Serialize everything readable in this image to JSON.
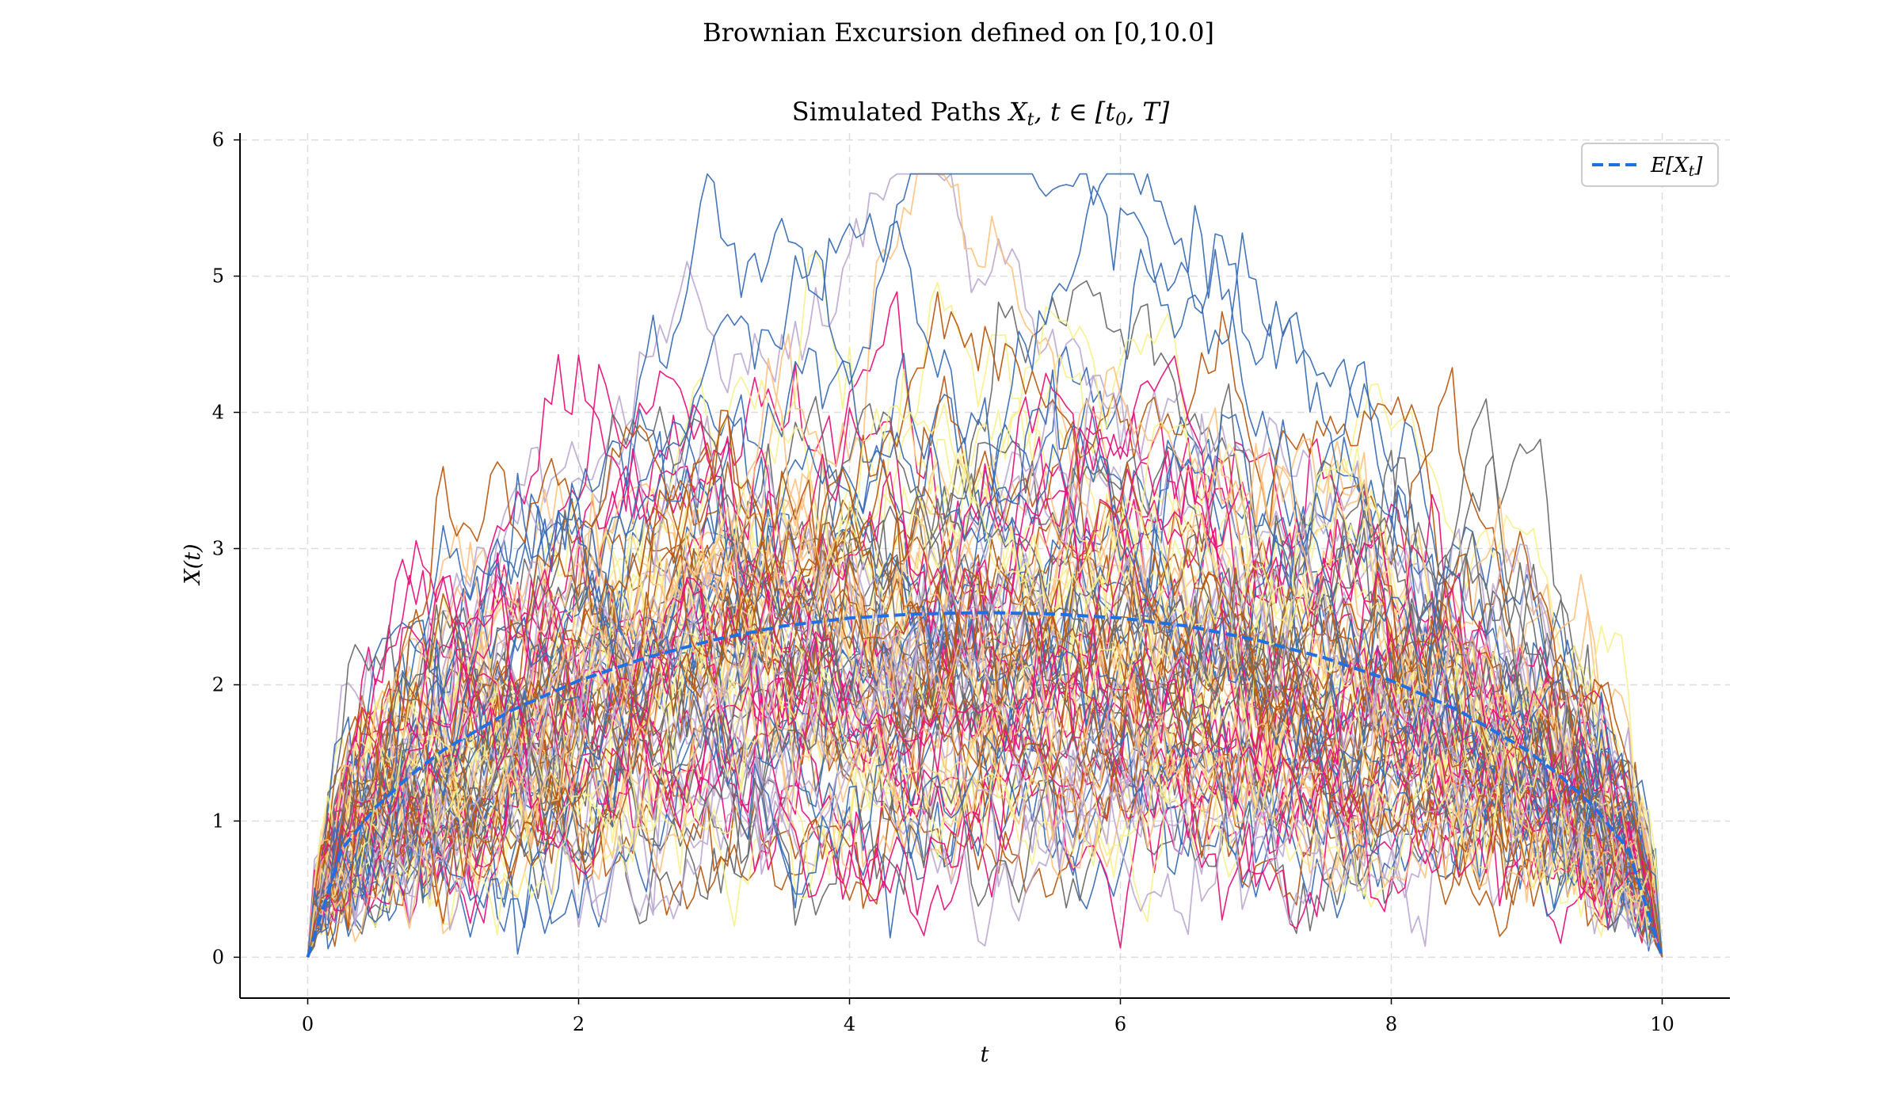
{
  "chart_data": {
    "type": "line",
    "suptitle": "Brownian Excursion defined on [0,10.0]",
    "title": "Simulated Paths X_t, t ∈ [t_0, T]",
    "title_plain": "Simulated Paths",
    "title_math": "X",
    "title_math_sub": "t",
    "title_math_rest": ", t ∈ [t",
    "title_math_sub2": "0",
    "title_math_end": ", T]",
    "xlabel": "t",
    "ylabel": "X(t)",
    "xlim": [
      -0.5,
      10.5
    ],
    "ylim": [
      -0.3,
      6.05
    ],
    "x_ticks": [
      0,
      2,
      4,
      6,
      8,
      10
    ],
    "y_ticks": [
      0,
      1,
      2,
      3,
      4,
      5,
      6
    ],
    "grid": true,
    "legend": {
      "placement": "top-right",
      "entries": [
        {
          "label": "E[X_t]",
          "label_main": "E[X",
          "label_sub": "t",
          "label_end": "]",
          "color": "#1f6fe5",
          "style": "dashed"
        }
      ]
    },
    "t_start": 0,
    "t_end": 10,
    "expected_curve": {
      "name": "E[X_t]",
      "color": "#1f6fe5",
      "t": [
        0,
        0.25,
        0.5,
        0.75,
        1,
        1.5,
        2,
        2.5,
        3,
        3.5,
        4,
        4.5,
        5,
        5.5,
        6,
        6.5,
        7,
        7.5,
        8,
        8.5,
        9,
        9.25,
        9.5,
        9.75,
        10
      ],
      "values": [
        0,
        0.79,
        1.1,
        1.33,
        1.52,
        1.81,
        2.03,
        2.2,
        2.33,
        2.43,
        2.49,
        2.52,
        2.53,
        2.52,
        2.49,
        2.43,
        2.33,
        2.2,
        2.03,
        1.81,
        1.52,
        1.33,
        1.1,
        0.79,
        0
      ]
    },
    "path_count": 100,
    "path_steps": 200,
    "path_colors": [
      "#3a6db5",
      "#b85a12",
      "#e8127a",
      "#6b6b6b",
      "#f7f08a",
      "#fdbf7a",
      "#b9a5cf"
    ],
    "note_paths": "simulated sample paths: Brownian excursions from 0 at t=0 to 0 at t=10, values mostly within 0 to 5.8"
  }
}
